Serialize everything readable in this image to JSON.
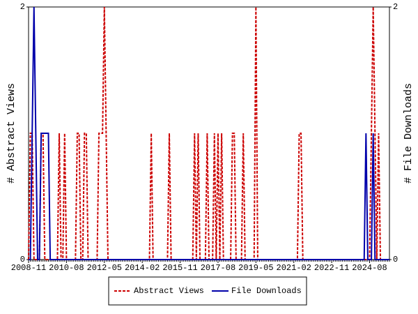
{
  "chart_data": {
    "type": "line",
    "ylabel": "# Abstract Views",
    "y2label": "# File Downloads",
    "categories": [
      "2008-11",
      null,
      null,
      null,
      null,
      null,
      null,
      null,
      null,
      null,
      null,
      null,
      null,
      null,
      null,
      null,
      null,
      null,
      null,
      null,
      null,
      "2010-08",
      null,
      null,
      null,
      null,
      null,
      null,
      null,
      null,
      null,
      null,
      null,
      null,
      null,
      null,
      null,
      null,
      null,
      null,
      null,
      null,
      "2012-05",
      null,
      null,
      null,
      null,
      null,
      null,
      null,
      null,
      null,
      null,
      null,
      null,
      null,
      null,
      null,
      null,
      null,
      null,
      null,
      null,
      "2014-02",
      null,
      null,
      null,
      null,
      null,
      null,
      null,
      null,
      null,
      null,
      null,
      null,
      null,
      null,
      null,
      null,
      null,
      null,
      null,
      null,
      "2015-11",
      null,
      null,
      null,
      null,
      null,
      null,
      null,
      null,
      null,
      null,
      null,
      null,
      null,
      null,
      null,
      null,
      null,
      null,
      null,
      null,
      "2017-08",
      null,
      null,
      null,
      null,
      null,
      null,
      null,
      null,
      null,
      null,
      null,
      null,
      null,
      null,
      null,
      null,
      null,
      null,
      null,
      null,
      "2019-05",
      null,
      null,
      null,
      null,
      null,
      null,
      null,
      null,
      null,
      null,
      null,
      null,
      null,
      null,
      null,
      null,
      null,
      null,
      null,
      null,
      "2021-02",
      null,
      null,
      null,
      null,
      null,
      null,
      null,
      null,
      null,
      null,
      null,
      null,
      null,
      null,
      null,
      null,
      null,
      null,
      null,
      null,
      "2022-11",
      null,
      null,
      null,
      null,
      null,
      null,
      null,
      null,
      null,
      null,
      null,
      null,
      null,
      null,
      null,
      null,
      null,
      null,
      null,
      null,
      "2024-08",
      null,
      null,
      null,
      null,
      null,
      null,
      null,
      null,
      null,
      null,
      null
    ],
    "series": [
      {
        "name": "Abstract Views",
        "color": "#cc0000",
        "dashed": true,
        "values": [
          0,
          1,
          1,
          0,
          0,
          0,
          0,
          1,
          1,
          0,
          0,
          0,
          0,
          0,
          0,
          0,
          0,
          1,
          0,
          0,
          1,
          0,
          0,
          0,
          0,
          0,
          0,
          1,
          1,
          0,
          0,
          1,
          1,
          0,
          0,
          0,
          0,
          0,
          0,
          1,
          1,
          1,
          2,
          1,
          0,
          0,
          0,
          0,
          0,
          0,
          0,
          0,
          0,
          0,
          0,
          0,
          0,
          0,
          0,
          0,
          0,
          0,
          0,
          0,
          0,
          0,
          0,
          0,
          1,
          0,
          0,
          0,
          0,
          0,
          0,
          0,
          0,
          0,
          1,
          0,
          0,
          0,
          0,
          0,
          0,
          0,
          0,
          0,
          0,
          0,
          0,
          0,
          1,
          0,
          1,
          0,
          0,
          0,
          0,
          1,
          0,
          0,
          0,
          1,
          0,
          1,
          0,
          1,
          0,
          0,
          0,
          0,
          0,
          1,
          1,
          0,
          0,
          0,
          0,
          1,
          0,
          0,
          0,
          0,
          0,
          0,
          2,
          0,
          0,
          0,
          0,
          0,
          0,
          0,
          0,
          0,
          0,
          0,
          0,
          0,
          0,
          0,
          0,
          0,
          0,
          0,
          0,
          0,
          0,
          0,
          1,
          1,
          0,
          0,
          0,
          0,
          0,
          0,
          0,
          0,
          0,
          0,
          0,
          0,
          0,
          0,
          0,
          0,
          0,
          0,
          0,
          0,
          0,
          0,
          0,
          0,
          0,
          0,
          0,
          0,
          0,
          0,
          0,
          0,
          0,
          0,
          0,
          0,
          0,
          0,
          1,
          2,
          1,
          0,
          1,
          0,
          0,
          0,
          0,
          0,
          0
        ]
      },
      {
        "name": "File Downloads",
        "color": "#0000aa",
        "dashed": false,
        "axis": "y2",
        "values": [
          0,
          0,
          1,
          2,
          1,
          0,
          0,
          1,
          1,
          1,
          1,
          1,
          0,
          0,
          0,
          0,
          0,
          0,
          0,
          0,
          0,
          0,
          0,
          0,
          0,
          0,
          0,
          0,
          0,
          0,
          0,
          0,
          0,
          0,
          0,
          0,
          0,
          0,
          0,
          0,
          0,
          0,
          0,
          0,
          0,
          0,
          0,
          0,
          0,
          0,
          0,
          0,
          0,
          0,
          0,
          0,
          0,
          0,
          0,
          0,
          0,
          0,
          0,
          0,
          0,
          0,
          0,
          0,
          0,
          0,
          0,
          0,
          0,
          0,
          0,
          0,
          0,
          0,
          0,
          0,
          0,
          0,
          0,
          0,
          0,
          0,
          0,
          0,
          0,
          0,
          0,
          0,
          0,
          0,
          0,
          0,
          0,
          0,
          0,
          0,
          0,
          0,
          0,
          0,
          0,
          0,
          0,
          0,
          0,
          0,
          0,
          0,
          0,
          0,
          0,
          0,
          0,
          0,
          0,
          0,
          0,
          0,
          0,
          0,
          0,
          0,
          0,
          0,
          0,
          0,
          0,
          0,
          0,
          0,
          0,
          0,
          0,
          0,
          0,
          0,
          0,
          0,
          0,
          0,
          0,
          0,
          0,
          0,
          0,
          0,
          0,
          0,
          0,
          0,
          0,
          0,
          0,
          0,
          0,
          0,
          0,
          0,
          0,
          0,
          0,
          0,
          0,
          0,
          0,
          0,
          0,
          0,
          0,
          0,
          0,
          0,
          0,
          0,
          0,
          0,
          0,
          0,
          0,
          0,
          0,
          0,
          0,
          1,
          0,
          0,
          0,
          1,
          0,
          0,
          0,
          0,
          0,
          0,
          0,
          0,
          0
        ]
      }
    ],
    "ylim": [
      0,
      2
    ],
    "yticks": [
      0,
      2
    ],
    "y2lim": [
      0,
      2
    ],
    "y2ticks": [
      0,
      2
    ],
    "legend": "bottom"
  }
}
